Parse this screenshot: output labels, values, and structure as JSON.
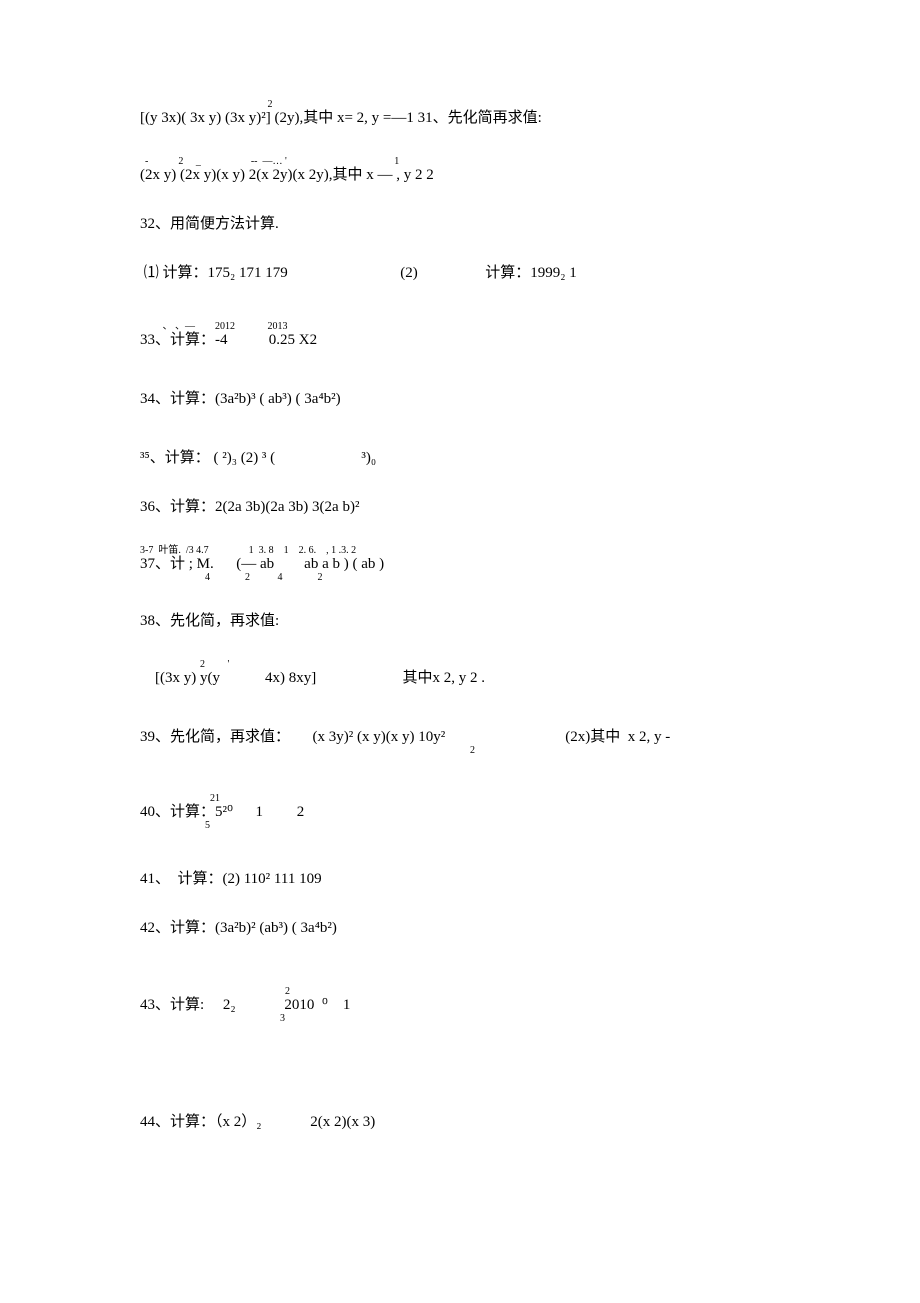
{
  "lines": [
    {
      "sup": "                                                   2",
      "main": "[(y 3x)( 3x y) (3x y)²] (2y),其中 x= 2, y =—1 31、先化简再求值:"
    },
    {
      "sup": "  -            2     _                    --  —… '                                           1",
      "main": "(2x y) (2x y)(x y) 2(x 2y)(x 2y),其中 x — , y 2 2"
    },
    {
      "main": "32、用简便方法计算."
    },
    {
      "main": " ⑴ 计算：175₂ 171 179                              (2)                  计算：1999₂ 1"
    },
    {
      "sup": "         、 、—        2012             2013",
      "main": "33、计算：-4           0.25 X2"
    },
    {
      "main": "34、计算：(3a²b)³ ( ab³) ( 3a⁴b²)"
    },
    {
      "main": "³⁵、计算： ( ²)₃ (2) ³ (                       ³)₀"
    },
    {
      "main": "36、计算：2(2a 3b)(2a 3b) 3(2a b)²"
    },
    {
      "sup": "3-7  叶笛.  /3 4.7                1  3. 8    1    2. 6.    , 1 .3. 2",
      "main": "37、计 ; M.      (— ab        ab a b ) ( ab )",
      "sub": "                          4              2           4              2"
    },
    {
      "main": "38、先化简，再求值:"
    },
    {
      "sup": "                        2         '",
      "main": "    [(3x y) y(y            4x) 8xy]                       其中x 2, y 2 ."
    },
    {
      "main": "39、先化简，再求值：      (x 3y)² (x y)(x y) 10y²                                (2x)其中  x 2, y -",
      "sub": "                                                                                                                                    2"
    },
    {
      "sup": "                            21",
      "main": "40、计算：5²⁰      1         2",
      "sub": "                          5"
    },
    {
      "main": "41、  计算：(2) 110² 111 109"
    },
    {
      "main": "42、计算：(3a²b)² (ab³) ( 3a⁴b²)"
    },
    {
      "sup": "                                                          2",
      "main": "43、计算:     2₂             2010  ⁰    1",
      "sub": "                                                        3"
    },
    {
      "main": "44、计算：（x 2）₂             2(x 2)(x 3)"
    }
  ],
  "gaps": [
    0,
    0,
    0,
    10,
    10,
    10,
    0,
    0,
    0,
    0,
    10,
    10,
    10,
    0,
    20,
    60
  ]
}
